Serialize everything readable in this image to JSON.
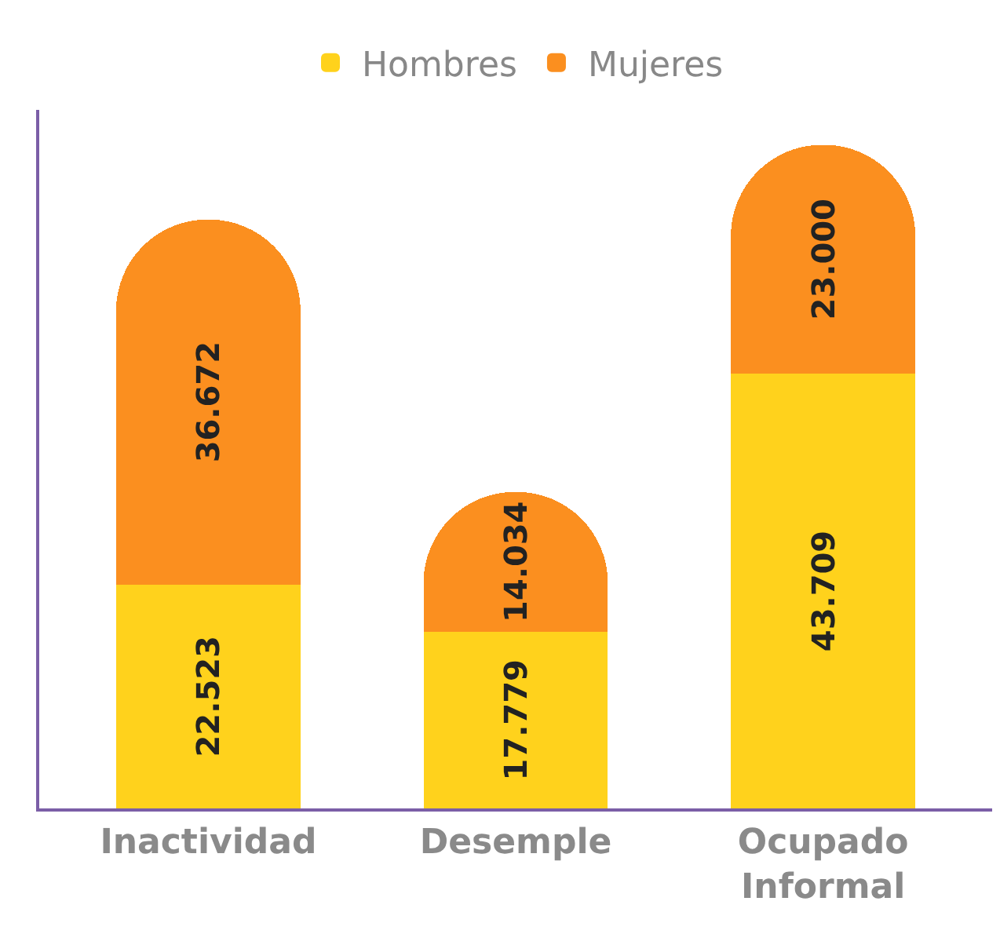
{
  "chart_data": {
    "type": "bar",
    "stacked": true,
    "categories": [
      "Inactividad",
      "Desemple",
      "Ocupado Informal"
    ],
    "series": [
      {
        "name": "Hombres",
        "color": "#ffd21c",
        "values": [
          22523,
          17779,
          43709
        ],
        "value_labels": [
          "22.523",
          "17.779",
          "43.709"
        ]
      },
      {
        "name": "Mujeres",
        "color": "#fb8f1f",
        "values": [
          36672,
          14034,
          23000
        ],
        "value_labels": [
          "36.672",
          "14.034",
          "23.000"
        ]
      }
    ],
    "legend": "top",
    "tick_labels": "x"
  }
}
